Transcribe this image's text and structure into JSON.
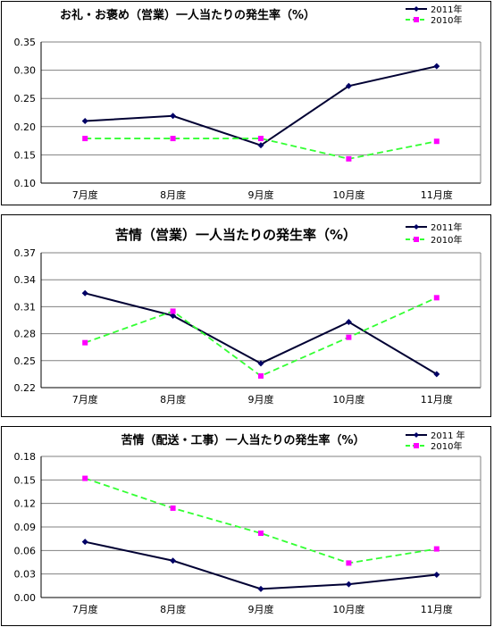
{
  "chart_data": [
    {
      "type": "line",
      "title": "お礼・お褒め（営業）一人当たりの発生率（%）",
      "categories": [
        "7月度",
        "8月度",
        "9月度",
        "10月度",
        "11月度"
      ],
      "ylim": [
        0.1,
        0.35
      ],
      "yticks": [
        "0.10",
        "0.15",
        "0.20",
        "0.25",
        "0.30",
        "0.35"
      ],
      "grid": true,
      "legend": "top-right",
      "series": [
        {
          "name": "2011年",
          "values": [
            0.21,
            0.219,
            0.167,
            0.272,
            0.307
          ],
          "color": "#000033",
          "style": "solid"
        },
        {
          "name": "2010年",
          "values": [
            0.179,
            0.179,
            0.179,
            0.143,
            0.174
          ],
          "color": "#33ff33",
          "style": "dashed"
        }
      ]
    },
    {
      "type": "line",
      "title": "苦情（営業）一人当たりの発生率（%）",
      "categories": [
        "7月度",
        "8月度",
        "9月度",
        "10月度",
        "11月度"
      ],
      "ylim": [
        0.22,
        0.37
      ],
      "yticks": [
        "0.22",
        "0.25",
        "0.28",
        "0.31",
        "0.34",
        "0.37"
      ],
      "grid": true,
      "legend": "top-right",
      "series": [
        {
          "name": "2011年",
          "values": [
            0.325,
            0.3,
            0.247,
            0.293,
            0.235
          ],
          "color": "#000033",
          "style": "solid"
        },
        {
          "name": "2010年",
          "values": [
            0.27,
            0.305,
            0.233,
            0.276,
            0.32
          ],
          "color": "#33ff33",
          "style": "dashed"
        }
      ]
    },
    {
      "type": "line",
      "title": "苦情（配送・工事）一人当たりの発生率（%）",
      "categories": [
        "7月度",
        "8月度",
        "9月度",
        "10月度",
        "11月度"
      ],
      "ylim": [
        0.0,
        0.18
      ],
      "yticks": [
        "0.00",
        "0.03",
        "0.06",
        "0.09",
        "0.12",
        "0.15",
        "0.18"
      ],
      "grid": true,
      "legend": "top-right",
      "series": [
        {
          "name": "2011 年",
          "values": [
            0.071,
            0.047,
            0.011,
            0.017,
            0.029
          ],
          "color": "#000033",
          "style": "solid"
        },
        {
          "name": "2010年",
          "values": [
            0.152,
            0.114,
            0.082,
            0.044,
            0.062
          ],
          "color": "#33ff33",
          "style": "dashed"
        }
      ]
    }
  ],
  "colors": {
    "marker_2010": "#ff00ff",
    "marker_2011": "#000066",
    "grid": "#808080"
  }
}
